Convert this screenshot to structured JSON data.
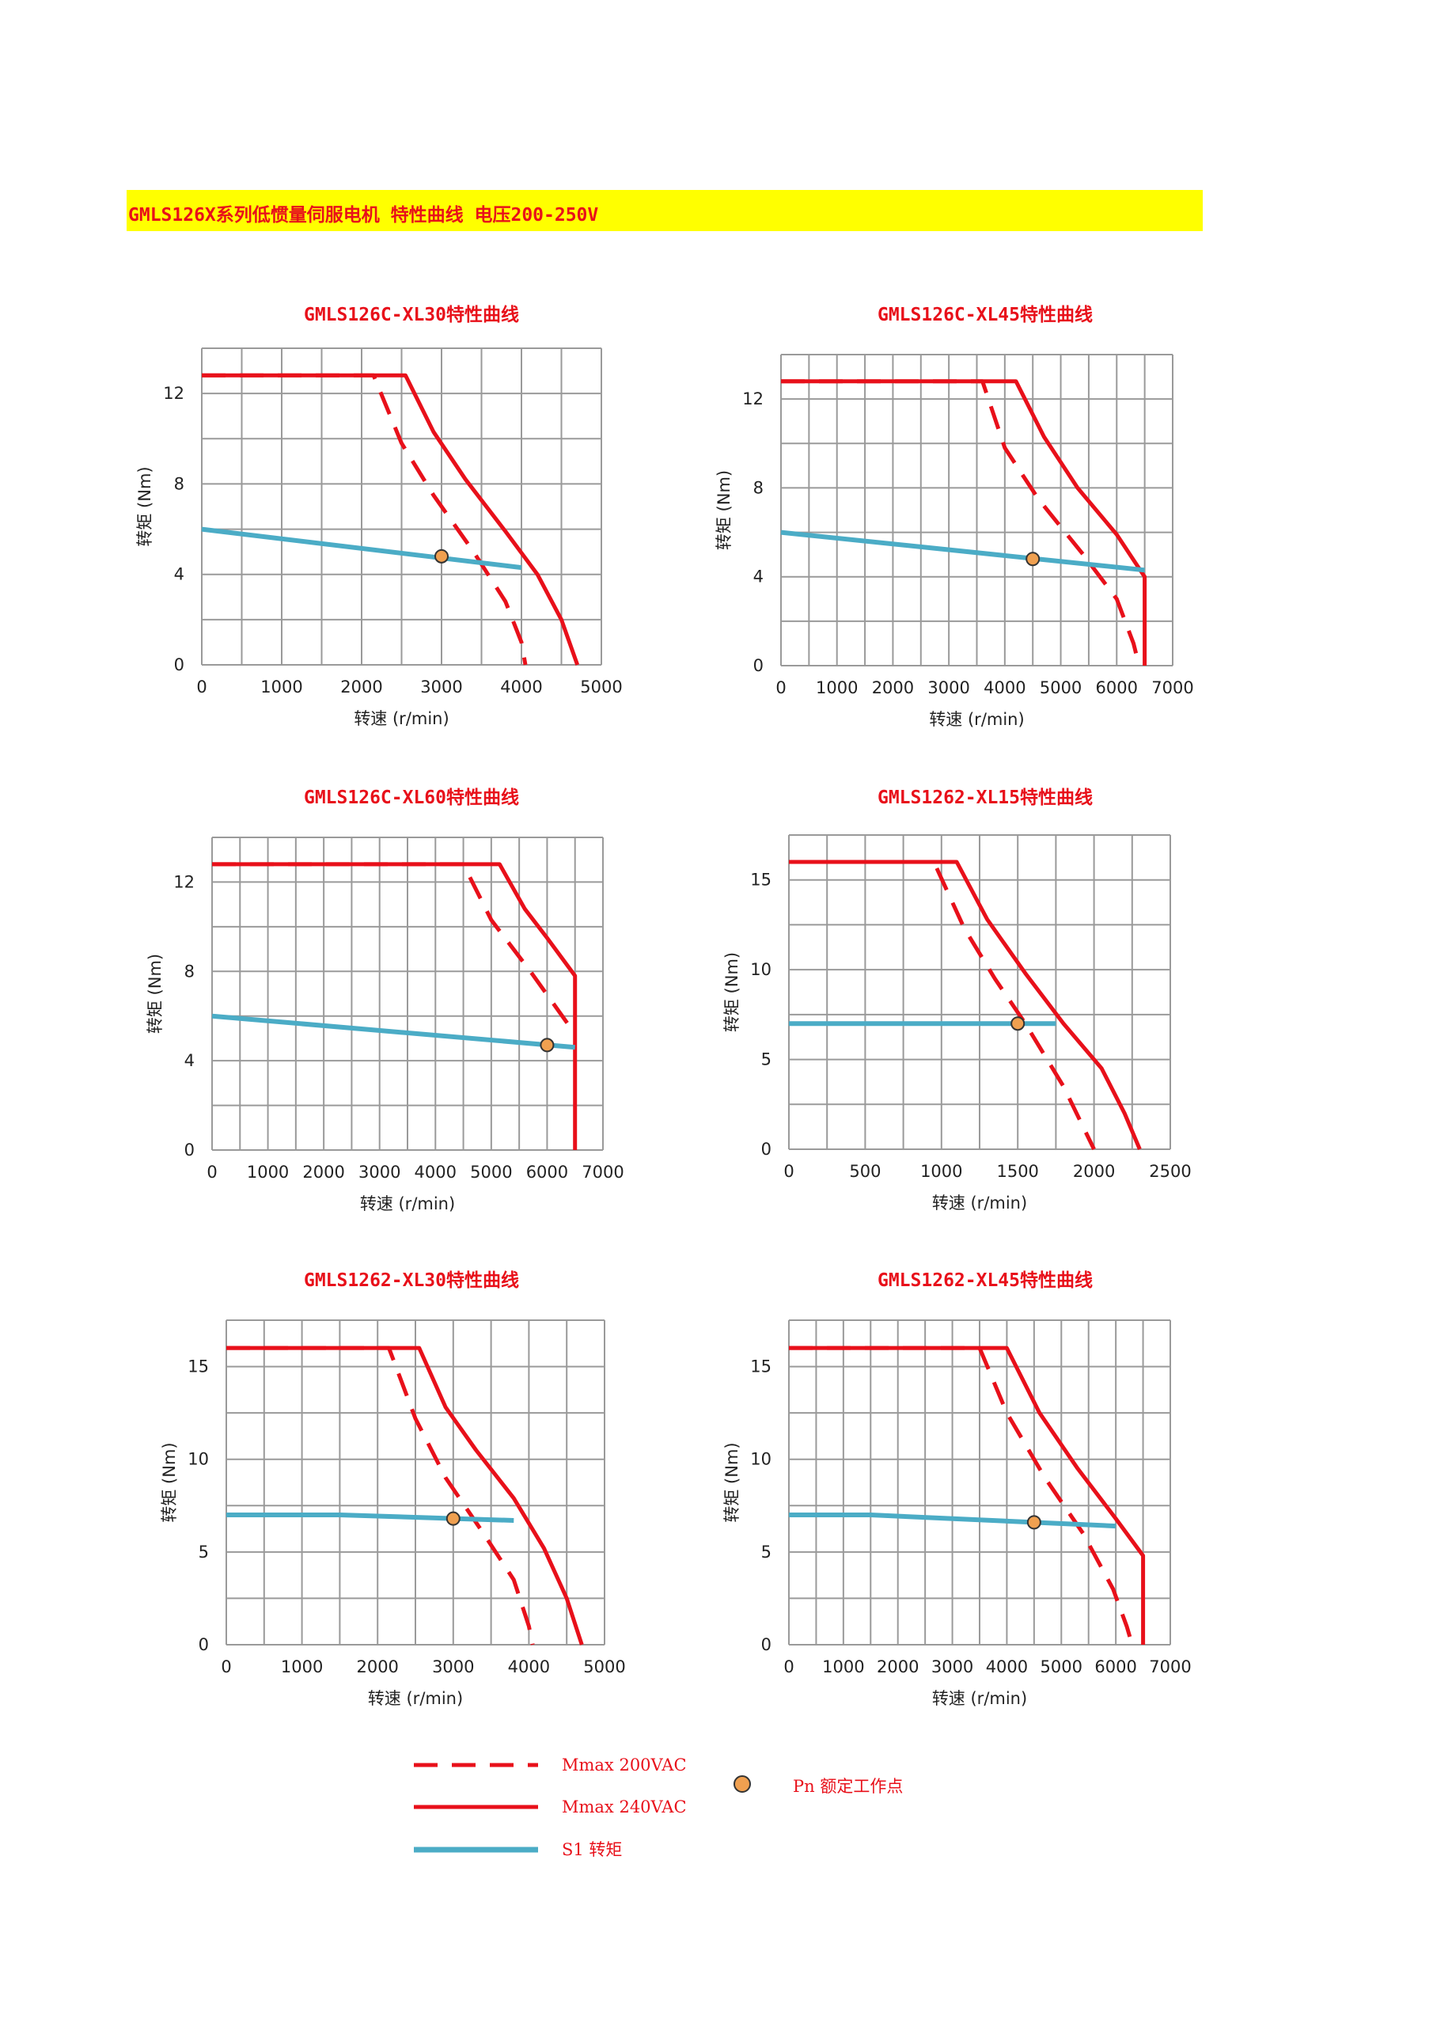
{
  "header": {
    "title": "GMLS126X系列低惯量伺服电机 特性曲线 电压200-250V"
  },
  "colors": {
    "mmax": "#e8101a",
    "s1": "#4bacc6",
    "point": "#f0a050",
    "banner": "#ffff00",
    "grid": "#9a9a9a"
  },
  "chart_data": [
    {
      "type": "line",
      "title": "GMLS126C-XL30特性曲线",
      "xlabel": "转速 (r/min)",
      "ylabel": "转矩 (Nm)",
      "xlim": [
        0,
        5000
      ],
      "ylim": [
        0,
        14
      ],
      "xticks": [
        0,
        1000,
        2000,
        3000,
        4000,
        5000
      ],
      "yticks": [
        0,
        4,
        8,
        12
      ],
      "grid": true,
      "series": [
        {
          "name": "Mmax 200VAC",
          "style": "dashed",
          "points": [
            [
              0,
              12.8
            ],
            [
              2150,
              12.8
            ],
            [
              2500,
              9.8
            ],
            [
              2900,
              7.5
            ],
            [
              3400,
              5.0
            ],
            [
              3800,
              2.8
            ],
            [
              4000,
              1.0
            ],
            [
              4050,
              0
            ]
          ]
        },
        {
          "name": "Mmax 240VAC",
          "style": "solid",
          "points": [
            [
              0,
              12.8
            ],
            [
              2550,
              12.8
            ],
            [
              2900,
              10.3
            ],
            [
              3300,
              8.2
            ],
            [
              3800,
              5.9
            ],
            [
              4200,
              4.0
            ],
            [
              4500,
              2.0
            ],
            [
              4700,
              0
            ]
          ]
        },
        {
          "name": "S1 转矩",
          "style": "solid",
          "points": [
            [
              0,
              6.0
            ],
            [
              4000,
              4.3
            ]
          ]
        }
      ],
      "rated_point": [
        3000,
        4.8
      ]
    },
    {
      "type": "line",
      "title": "GMLS126C-XL45特性曲线",
      "xlabel": "转速 (r/min)",
      "ylabel": "转矩 (Nm)",
      "xlim": [
        0,
        7000
      ],
      "ylim": [
        0,
        14
      ],
      "xticks": [
        0,
        1000,
        2000,
        3000,
        4000,
        5000,
        6000,
        7000
      ],
      "yticks": [
        0,
        4,
        8,
        12
      ],
      "grid": true,
      "series": [
        {
          "name": "Mmax 200VAC",
          "style": "dashed",
          "points": [
            [
              0,
              12.8
            ],
            [
              3600,
              12.8
            ],
            [
              4000,
              9.8
            ],
            [
              4600,
              7.5
            ],
            [
              5400,
              5.0
            ],
            [
              6000,
              3.0
            ],
            [
              6300,
              1.0
            ],
            [
              6400,
              0
            ]
          ]
        },
        {
          "name": "Mmax 240VAC",
          "style": "solid",
          "points": [
            [
              0,
              12.8
            ],
            [
              4200,
              12.8
            ],
            [
              4700,
              10.3
            ],
            [
              5300,
              8.0
            ],
            [
              6000,
              5.9
            ],
            [
              6500,
              4.0
            ],
            [
              6500,
              0
            ]
          ]
        },
        {
          "name": "S1 转矩",
          "style": "solid",
          "points": [
            [
              0,
              6.0
            ],
            [
              6500,
              4.3
            ]
          ]
        }
      ],
      "rated_point": [
        4500,
        4.8
      ]
    },
    {
      "type": "line",
      "title": "GMLS126C-XL60特性曲线",
      "xlabel": "转速 (r/min)",
      "ylabel": "转矩 (Nm)",
      "xlim": [
        0,
        7000
      ],
      "ylim": [
        0,
        14
      ],
      "xticks": [
        0,
        1000,
        2000,
        3000,
        4000,
        5000,
        6000,
        7000
      ],
      "yticks": [
        0,
        4,
        8,
        12
      ],
      "grid": true,
      "series": [
        {
          "name": "Mmax 200VAC",
          "style": "dashed",
          "points": [
            [
              0,
              12.8
            ],
            [
              4500,
              12.8
            ],
            [
              5000,
              10.3
            ],
            [
              5700,
              8.0
            ],
            [
              6500,
              5.2
            ]
          ]
        },
        {
          "name": "Mmax 240VAC",
          "style": "solid",
          "points": [
            [
              0,
              12.8
            ],
            [
              5150,
              12.8
            ],
            [
              5600,
              10.8
            ],
            [
              6000,
              9.5
            ],
            [
              6500,
              7.8
            ],
            [
              6500,
              0
            ]
          ]
        },
        {
          "name": "S1 转矩",
          "style": "solid",
          "points": [
            [
              0,
              6.0
            ],
            [
              6500,
              4.6
            ]
          ]
        }
      ],
      "rated_point": [
        6000,
        4.7
      ]
    },
    {
      "type": "line",
      "title": "GMLS1262-XL15特性曲线",
      "xlabel": "转速 (r/min)",
      "ylabel": "转矩 (Nm)",
      "xlim": [
        0,
        2500
      ],
      "ylim": [
        0,
        17.5
      ],
      "xticks": [
        0,
        500,
        1000,
        1500,
        2000,
        2500
      ],
      "yticks": [
        0,
        5,
        10,
        15
      ],
      "grid": true,
      "series": [
        {
          "name": "Mmax 200VAC",
          "style": "dashed",
          "points": [
            [
              0,
              16.0
            ],
            [
              950,
              16.0
            ],
            [
              1150,
              12.3
            ],
            [
              1350,
              9.5
            ],
            [
              1550,
              7.0
            ],
            [
              1800,
              3.5
            ],
            [
              2000,
              0
            ]
          ]
        },
        {
          "name": "Mmax 240VAC",
          "style": "solid",
          "points": [
            [
              0,
              16.0
            ],
            [
              1100,
              16.0
            ],
            [
              1300,
              12.8
            ],
            [
              1550,
              9.8
            ],
            [
              1800,
              7.0
            ],
            [
              2050,
              4.5
            ],
            [
              2200,
              2.0
            ],
            [
              2300,
              0
            ]
          ]
        },
        {
          "name": "S1 转矩",
          "style": "solid",
          "points": [
            [
              0,
              7.0
            ],
            [
              1750,
              7.0
            ]
          ]
        }
      ],
      "rated_point": [
        1500,
        7.0
      ]
    },
    {
      "type": "line",
      "title": "GMLS1262-XL30特性曲线",
      "xlabel": "转速 (r/min)",
      "ylabel": "转矩 (Nm)",
      "xlim": [
        0,
        5000
      ],
      "ylim": [
        0,
        17.5
      ],
      "xticks": [
        0,
        1000,
        2000,
        3000,
        4000,
        5000
      ],
      "yticks": [
        0,
        5,
        10,
        15
      ],
      "grid": true,
      "series": [
        {
          "name": "Mmax 200VAC",
          "style": "dashed",
          "points": [
            [
              0,
              16.0
            ],
            [
              2150,
              16.0
            ],
            [
              2500,
              12.2
            ],
            [
              2900,
              9.0
            ],
            [
              3400,
              6.0
            ],
            [
              3800,
              3.5
            ],
            [
              4000,
              1.0
            ],
            [
              4050,
              0
            ]
          ]
        },
        {
          "name": "Mmax 240VAC",
          "style": "solid",
          "points": [
            [
              0,
              16.0
            ],
            [
              2550,
              16.0
            ],
            [
              2900,
              12.8
            ],
            [
              3300,
              10.5
            ],
            [
              3800,
              7.9
            ],
            [
              4200,
              5.2
            ],
            [
              4500,
              2.5
            ],
            [
              4700,
              0
            ]
          ]
        },
        {
          "name": "S1 转矩",
          "style": "solid",
          "points": [
            [
              0,
              7.0
            ],
            [
              1500,
              7.0
            ],
            [
              3800,
              6.7
            ]
          ]
        }
      ],
      "rated_point": [
        3000,
        6.8
      ]
    },
    {
      "type": "line",
      "title": "GMLS1262-XL45特性曲线",
      "xlabel": "转速 (r/min)",
      "ylabel": "转矩 (Nm)",
      "xlim": [
        0,
        7000
      ],
      "ylim": [
        0,
        17.5
      ],
      "xticks": [
        0,
        1000,
        2000,
        3000,
        4000,
        5000,
        6000,
        7000
      ],
      "yticks": [
        0,
        5,
        10,
        15
      ],
      "grid": true,
      "series": [
        {
          "name": "Mmax 200VAC",
          "style": "dashed",
          "points": [
            [
              0,
              16.0
            ],
            [
              3500,
              16.0
            ],
            [
              4000,
              12.5
            ],
            [
              4700,
              9.0
            ],
            [
              5400,
              6.0
            ],
            [
              5950,
              3.0
            ],
            [
              6200,
              1.0
            ],
            [
              6300,
              0
            ]
          ]
        },
        {
          "name": "Mmax 240VAC",
          "style": "solid",
          "points": [
            [
              0,
              16.0
            ],
            [
              4000,
              16.0
            ],
            [
              4600,
              12.5
            ],
            [
              5300,
              9.5
            ],
            [
              6000,
              6.8
            ],
            [
              6500,
              4.8
            ],
            [
              6500,
              0
            ]
          ]
        },
        {
          "name": "S1 转矩",
          "style": "solid",
          "points": [
            [
              0,
              7.0
            ],
            [
              1500,
              7.0
            ],
            [
              6000,
              6.4
            ]
          ]
        }
      ],
      "rated_point": [
        4500,
        6.6
      ]
    }
  ],
  "legend": {
    "mmax_200": "Mmax 200VAC",
    "mmax_240": "Mmax 240VAC",
    "s1": "S1 转矩",
    "pn": "Pn 额定工作点"
  }
}
